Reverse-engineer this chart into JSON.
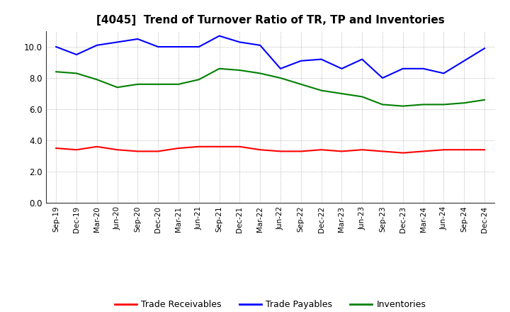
{
  "title": "[4045]  Trend of Turnover Ratio of TR, TP and Inventories",
  "x_labels": [
    "Sep-19",
    "Dec-19",
    "Mar-20",
    "Jun-20",
    "Sep-20",
    "Dec-20",
    "Mar-21",
    "Jun-21",
    "Sep-21",
    "Dec-21",
    "Mar-22",
    "Jun-22",
    "Sep-22",
    "Dec-22",
    "Mar-23",
    "Jun-23",
    "Sep-23",
    "Dec-23",
    "Mar-24",
    "Jun-24",
    "Sep-24",
    "Dec-24"
  ],
  "trade_receivables": [
    3.5,
    3.4,
    3.6,
    3.4,
    3.3,
    3.3,
    3.5,
    3.6,
    3.6,
    3.6,
    3.4,
    3.3,
    3.3,
    3.4,
    3.3,
    3.4,
    3.3,
    3.2,
    3.3,
    3.4,
    3.4,
    3.4
  ],
  "trade_payables": [
    10.0,
    9.5,
    10.1,
    10.3,
    10.5,
    10.0,
    10.0,
    10.0,
    10.7,
    10.3,
    10.1,
    8.6,
    9.1,
    9.2,
    8.6,
    9.2,
    8.0,
    8.6,
    8.6,
    8.3,
    9.1,
    9.9
  ],
  "inventories": [
    8.4,
    8.3,
    7.9,
    7.4,
    7.6,
    7.6,
    7.6,
    7.9,
    8.6,
    8.5,
    8.3,
    8.0,
    7.6,
    7.2,
    7.0,
    6.8,
    6.3,
    6.2,
    6.3,
    6.3,
    6.4,
    6.6
  ],
  "tr_color": "#ff0000",
  "tp_color": "#0000ff",
  "inv_color": "#008000",
  "ylim": [
    0,
    11.0
  ],
  "yticks": [
    0.0,
    2.0,
    4.0,
    6.0,
    8.0,
    10.0
  ],
  "legend_labels": [
    "Trade Receivables",
    "Trade Payables",
    "Inventories"
  ],
  "bg_color": "#ffffff",
  "grid_color": "#999999"
}
